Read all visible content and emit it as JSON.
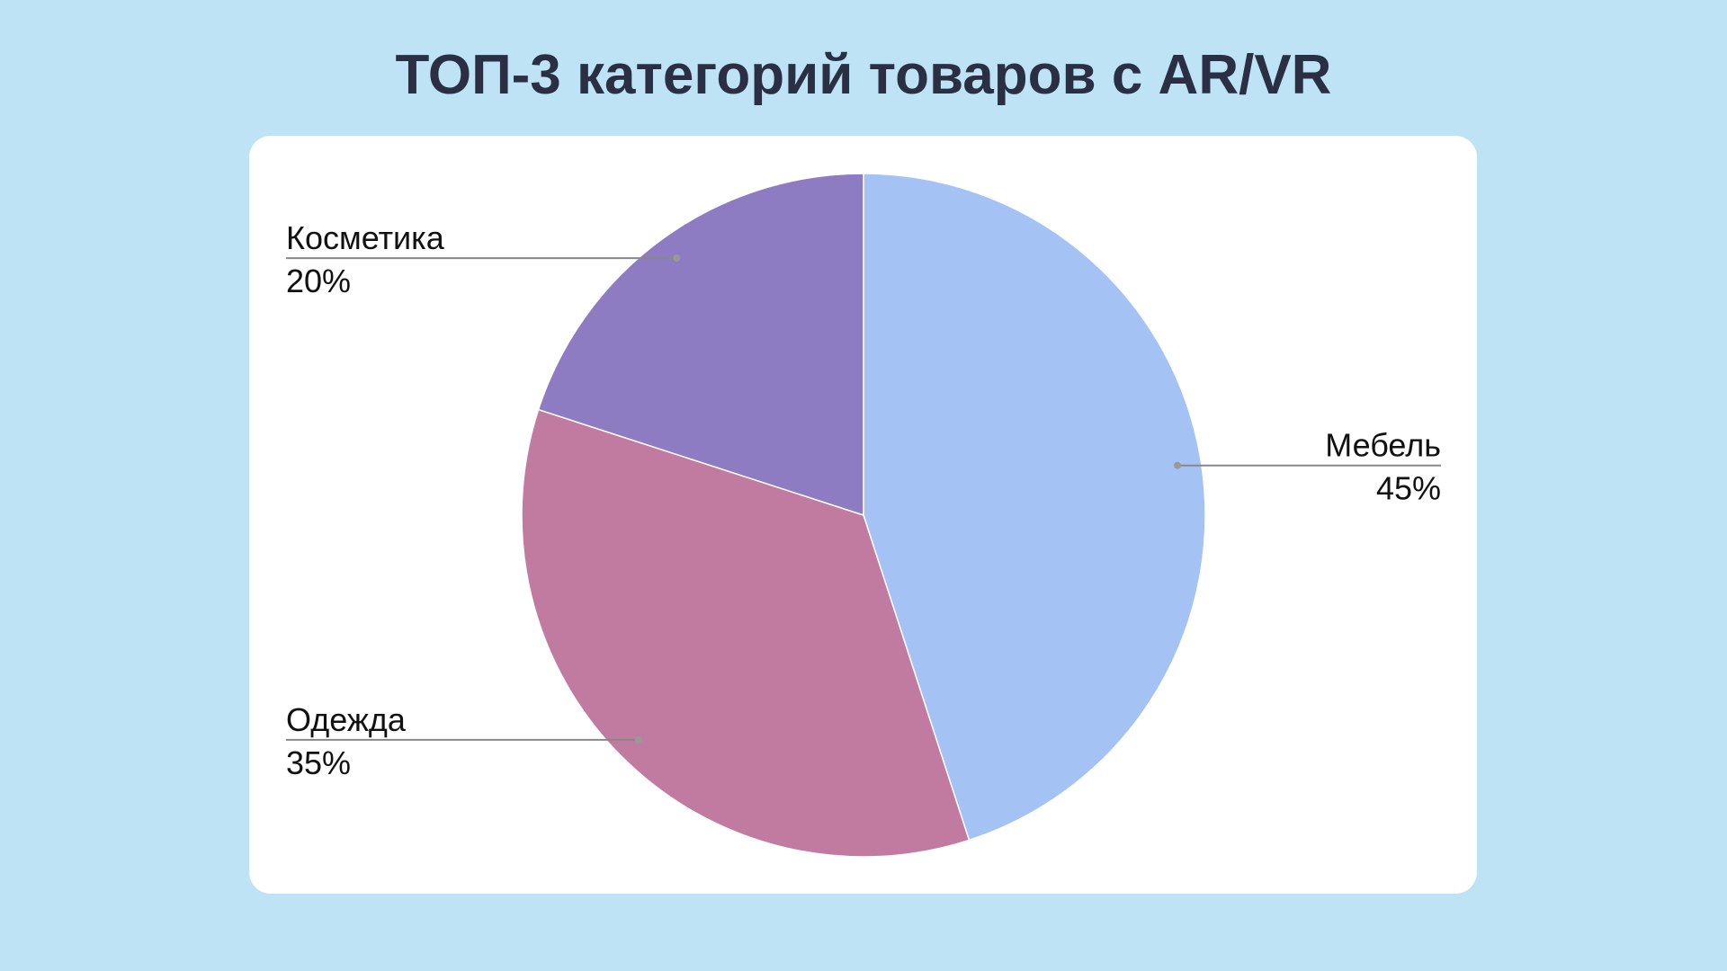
{
  "chart_data": {
    "type": "pie",
    "title": "ТОП-3 категорий товаров с AR/VR",
    "categories": [
      "Мебель",
      "Одежда",
      "Косметика"
    ],
    "values": [
      45,
      35,
      20
    ],
    "value_labels": [
      "45%",
      "35%",
      "20%"
    ],
    "colors": [
      "#a4c2f4",
      "#c27ba0",
      "#8e7cc3"
    ]
  }
}
